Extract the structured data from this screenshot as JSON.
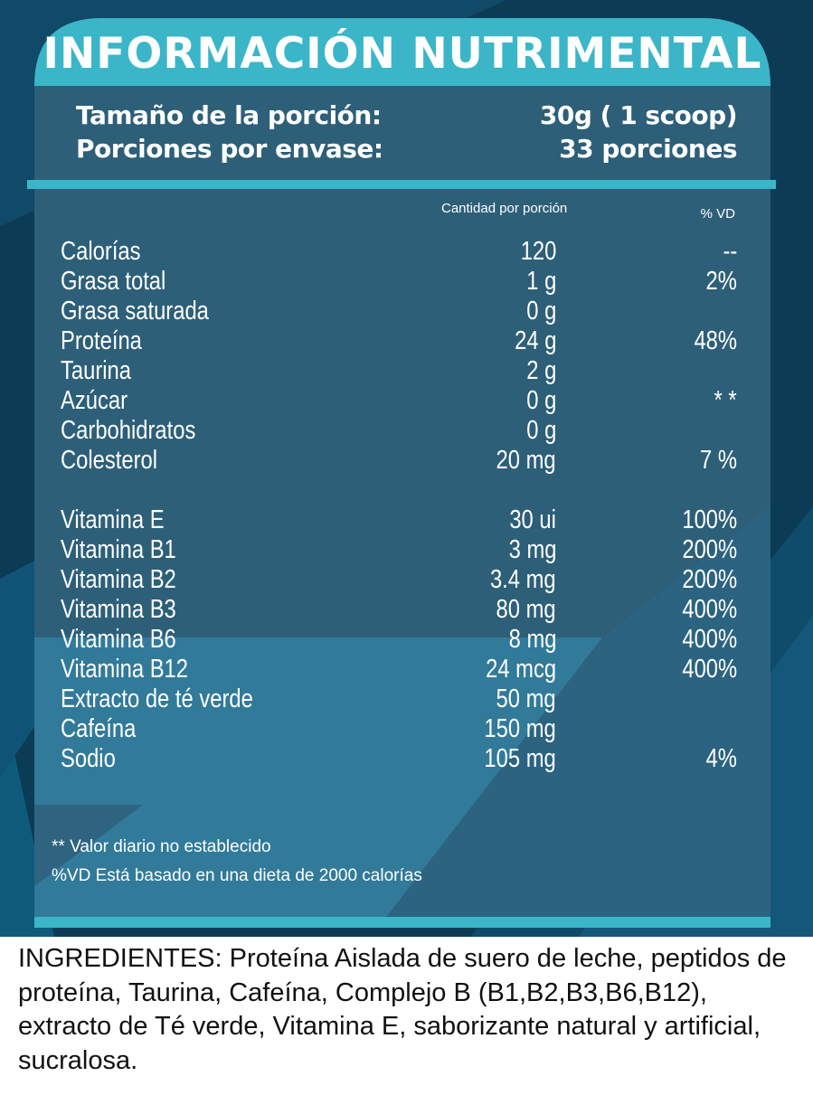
{
  "title": "INFORMACIÓN NUTRIMENTAL",
  "serving": {
    "size_label": "Tamaño de la porción:",
    "size_value": "30g ( 1 scoop)",
    "servings_label": "Porciones por envase:",
    "servings_value": "33 porciones"
  },
  "columns": {
    "amount": "Cantidad por porción",
    "dv": "% VD"
  },
  "nutrients": [
    {
      "name": "Calorías",
      "amount": "120",
      "dv": "--"
    },
    {
      "name": "Grasa total",
      "amount": "1 g",
      "dv": "2%"
    },
    {
      "name": "Grasa saturada",
      "amount": "0 g",
      "dv": ""
    },
    {
      "name": "Proteína",
      "amount": "24 g",
      "dv": "48%"
    },
    {
      "name": "Taurina",
      "amount": "2 g",
      "dv": ""
    },
    {
      "name": "Azúcar",
      "amount": "0 g",
      "dv": "* *"
    },
    {
      "name": "Carbohidratos",
      "amount": "0 g",
      "dv": ""
    },
    {
      "name": "Colesterol",
      "amount": "20 mg",
      "dv": "7 %"
    }
  ],
  "vitamins": [
    {
      "name": "Vitamina E",
      "amount": "30 ui",
      "dv": "100%"
    },
    {
      "name": "Vitamina B1",
      "amount": "3 mg",
      "dv": "200%"
    },
    {
      "name": "Vitamina B2",
      "amount": "3.4 mg",
      "dv": "200%"
    },
    {
      "name": "Vitamina B3",
      "amount": "80 mg",
      "dv": "400%"
    },
    {
      "name": "Vitamina B6",
      "amount": "8 mg",
      "dv": "400%"
    },
    {
      "name": "Vitamina B12",
      "amount": "24 mcg",
      "dv": "400%"
    },
    {
      "name": "Extracto de té verde",
      "amount": "50 mg",
      "dv": ""
    },
    {
      "name": "Cafeína",
      "amount": "150 mg",
      "dv": ""
    },
    {
      "name": "Sodio",
      "amount": "105 mg",
      "dv": "4%"
    }
  ],
  "footnotes": {
    "line1": "** Valor diario no establecido",
    "line2": "%VD Está basado en una dieta de 2000 calorías"
  },
  "ingredients": "INGREDIENTES: Proteína Aislada de suero de leche, peptidos de proteína, Taurina, Cafeína, Complejo B (B1,B2,B3,B6,B12), extracto de Té verde, Vitamina E, saborizante natural y artificial, sucralosa.",
  "colors": {
    "background": "#0c3b55",
    "panel": "#2d5f79",
    "accent": "#3ab6c8",
    "text": "#ffffff"
  }
}
